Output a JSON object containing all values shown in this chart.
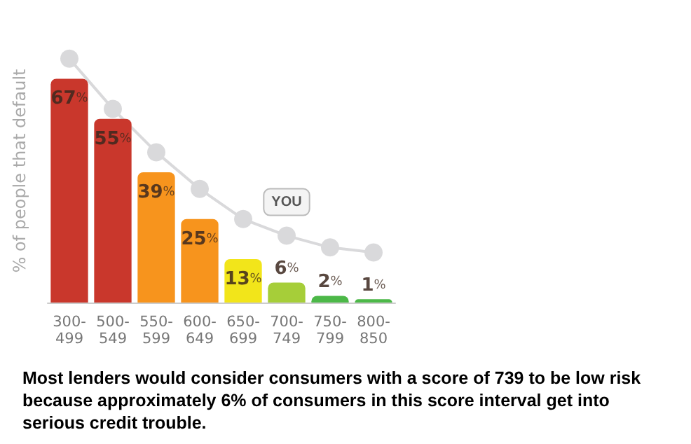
{
  "chart_data": {
    "type": "bar",
    "ylabel": "% of people that default",
    "categories": [
      "300-\n499",
      "500-\n549",
      "550-\n599",
      "600-\n649",
      "650-\n699",
      "700-\n749",
      "750-\n799",
      "800-\n850"
    ],
    "series": [
      {
        "colors": [
          "#c9372c",
          "#c9372c",
          "#f7941d",
          "#f7941d",
          "#f2e51a",
          "#a6ce39",
          "#4cb848",
          "#4cb848"
        ],
        "values": [
          67,
          55,
          39,
          25,
          13,
          6,
          2,
          1
        ],
        "value_labels": [
          "67%",
          "55%",
          "39%",
          "25%",
          "13%",
          "6%",
          "2%",
          "1%"
        ]
      },
      {
        "type": "line",
        "color": "#d9d9db",
        "marker": "circle",
        "values": [
          73,
          58,
          45,
          34,
          25,
          20,
          16.5,
          15
        ]
      }
    ],
    "annotations": [
      {
        "text": "YOU",
        "x": "700-\n749",
        "y": 20
      },
      "Most lenders would consider consumers with a score of 739 to be low risk because approximately 6% of consumers in this score interval get into serious credit trouble."
    ]
  }
}
